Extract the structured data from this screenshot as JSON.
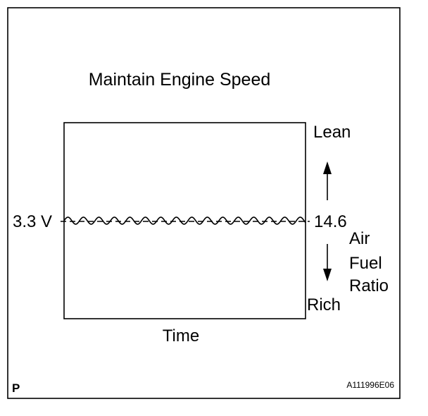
{
  "title": "Maintain Engine Speed",
  "voltage_label": "3.3 V",
  "ratio_label": "14.6",
  "lean_label": "Lean",
  "rich_label": "Rich",
  "axis_label_lines": [
    "Air",
    "Fuel",
    "Ratio"
  ],
  "time_label": "Time",
  "corner_mark": "P",
  "figure_code": "A111996E06",
  "colors": {
    "line": "#000000",
    "background": "#ffffff"
  }
}
